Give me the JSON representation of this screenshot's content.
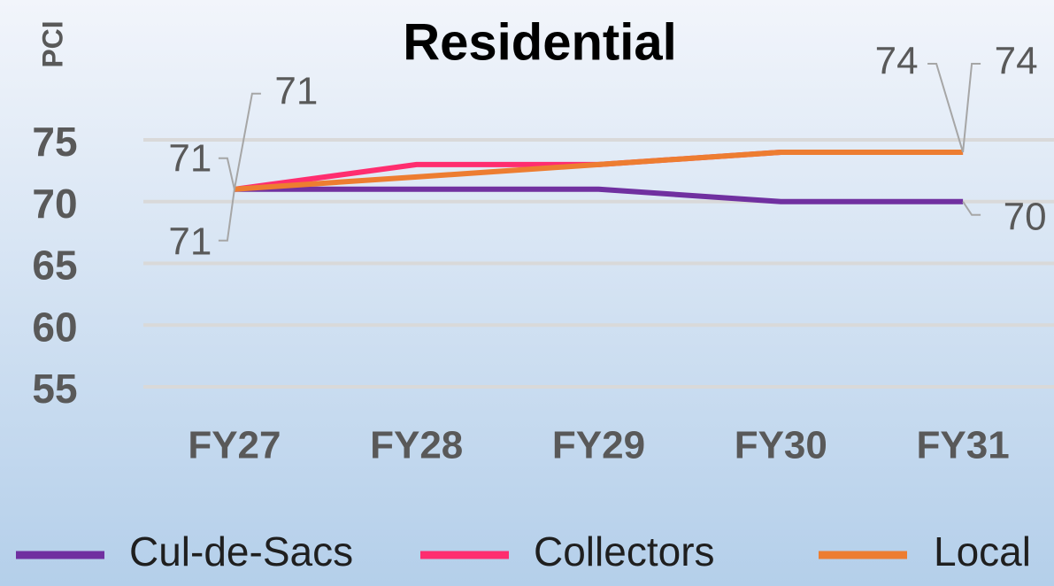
{
  "chart_data": {
    "type": "line",
    "title": "Residential",
    "y_label": "PCI",
    "categories": [
      "FY27",
      "FY28",
      "FY29",
      "FY30",
      "FY31"
    ],
    "series": [
      {
        "name": "Cul-de-Sacs",
        "color": "#7030a0",
        "values": [
          71,
          71,
          71,
          70,
          70
        ]
      },
      {
        "name": "Collectors",
        "color": "#ff2d6f",
        "values": [
          71,
          73,
          73,
          74,
          74
        ]
      },
      {
        "name": "Local",
        "color": "#ed7d31",
        "values": [
          71,
          72,
          73,
          74,
          74
        ]
      }
    ],
    "ylim": [
      55,
      75
    ],
    "yticks": [
      55,
      60,
      65,
      70,
      75
    ],
    "grid": true,
    "legend": "bottom"
  }
}
